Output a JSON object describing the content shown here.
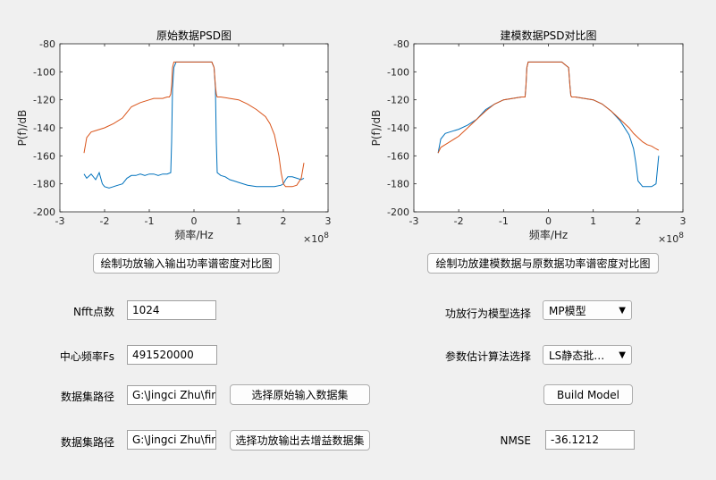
{
  "chart_data": [
    {
      "type": "line",
      "title": "原始数据PSD图",
      "xlabel": "频率/Hz",
      "ylabel": "P(f)/dB",
      "x_exponent": "×10^8",
      "xlim": [
        -3,
        3
      ],
      "ylim": [
        -200,
        -80
      ],
      "xticks": [
        -3,
        -2,
        -1,
        0,
        1,
        2,
        3
      ],
      "yticks": [
        -200,
        -180,
        -160,
        -140,
        -120,
        -100,
        -80
      ],
      "grid": false,
      "series": [
        {
          "color": "#0072bd",
          "x": [
            -2.46,
            -2.4,
            -2.3,
            -2.2,
            -2.12,
            -2.05,
            -2.0,
            -1.9,
            -1.8,
            -1.7,
            -1.6,
            -1.5,
            -1.4,
            -1.3,
            -1.2,
            -1.1,
            -1.0,
            -0.9,
            -0.8,
            -0.7,
            -0.6,
            -0.52,
            -0.5,
            -0.48,
            -0.45,
            -0.4,
            -0.3,
            -0.2,
            -0.1,
            0,
            0.1,
            0.2,
            0.3,
            0.4,
            0.45,
            0.48,
            0.5,
            0.52,
            0.6,
            0.7,
            0.8,
            0.9,
            1.0,
            1.2,
            1.4,
            1.6,
            1.8,
            1.95,
            2.0,
            2.05,
            2.1,
            2.2,
            2.3,
            2.4,
            2.46
          ],
          "y": [
            -173,
            -176,
            -173,
            -177,
            -172,
            -180,
            -182,
            -183,
            -182,
            -181,
            -180,
            -176,
            -174,
            -174,
            -173,
            -174,
            -173,
            -173,
            -174,
            -173,
            -173,
            -172,
            -150,
            -112,
            -97,
            -93,
            -93,
            -93,
            -93,
            -93,
            -93,
            -93,
            -93,
            -93,
            -97,
            -112,
            -150,
            -172,
            -174,
            -175,
            -177,
            -178,
            -179,
            -181,
            -182,
            -182,
            -182,
            -181,
            -180,
            -177,
            -175,
            -175,
            -176,
            -177,
            -176
          ]
        },
        {
          "color": "#d95319",
          "x": [
            -2.46,
            -2.4,
            -2.3,
            -2.2,
            -2.0,
            -1.8,
            -1.6,
            -1.4,
            -1.2,
            -1.0,
            -0.9,
            -0.8,
            -0.7,
            -0.6,
            -0.55,
            -0.52,
            -0.5,
            -0.48,
            -0.45,
            -0.4,
            -0.3,
            -0.2,
            -0.1,
            0,
            0.1,
            0.2,
            0.3,
            0.4,
            0.45,
            0.48,
            0.5,
            0.52,
            0.6,
            0.8,
            1.0,
            1.2,
            1.4,
            1.6,
            1.7,
            1.8,
            1.9,
            1.95,
            2.0,
            2.05,
            2.1,
            2.2,
            2.3,
            2.4,
            2.46
          ],
          "y": [
            -158,
            -147,
            -143,
            -142,
            -140,
            -137,
            -133,
            -125,
            -122,
            -120,
            -119,
            -119,
            -119,
            -118,
            -118,
            -116,
            -110,
            -97,
            -93,
            -93,
            -93,
            -93,
            -93,
            -93,
            -93,
            -93,
            -93,
            -93,
            -97,
            -110,
            -116,
            -118,
            -118,
            -119,
            -120,
            -123,
            -127,
            -132,
            -137,
            -145,
            -160,
            -172,
            -180,
            -182,
            -182,
            -182,
            -181,
            -176,
            -165
          ]
        }
      ]
    },
    {
      "type": "line",
      "title": "建模数据PSD对比图",
      "xlabel": "频率/Hz",
      "ylabel": "P(f)/dB",
      "x_exponent": "×10^8",
      "xlim": [
        -3,
        3
      ],
      "ylim": [
        -200,
        -80
      ],
      "xticks": [
        -3,
        -2,
        -1,
        0,
        1,
        2,
        3
      ],
      "yticks": [
        -200,
        -180,
        -160,
        -140,
        -120,
        -100,
        -80
      ],
      "grid": false,
      "series": [
        {
          "color": "#0072bd",
          "x": [
            -2.46,
            -2.4,
            -2.3,
            -2.2,
            -2.0,
            -1.8,
            -1.6,
            -1.4,
            -1.2,
            -1.0,
            -0.8,
            -0.6,
            -0.52,
            -0.5,
            -0.48,
            -0.45,
            -0.3,
            0,
            0.3,
            0.45,
            0.48,
            0.5,
            0.52,
            0.6,
            0.8,
            1.0,
            1.2,
            1.4,
            1.6,
            1.8,
            1.9,
            1.95,
            2.0,
            2.1,
            2.2,
            2.3,
            2.4,
            2.46
          ],
          "y": [
            -158,
            -148,
            -144,
            -143,
            -141,
            -138,
            -134,
            -127,
            -123,
            -120,
            -119,
            -118,
            -118,
            -110,
            -97,
            -93,
            -93,
            -93,
            -93,
            -97,
            -110,
            -117,
            -118,
            -118,
            -119,
            -120,
            -123,
            -128,
            -135,
            -145,
            -155,
            -165,
            -178,
            -182,
            -182,
            -182,
            -180,
            -160
          ]
        },
        {
          "color": "#d95319",
          "x": [
            -2.46,
            -2.4,
            -2.3,
            -2.2,
            -2.0,
            -1.8,
            -1.6,
            -1.4,
            -1.2,
            -1.0,
            -0.8,
            -0.6,
            -0.52,
            -0.5,
            -0.48,
            -0.45,
            -0.3,
            0,
            0.3,
            0.45,
            0.48,
            0.5,
            0.52,
            0.6,
            0.8,
            1.0,
            1.2,
            1.4,
            1.6,
            1.8,
            1.9,
            2.0,
            2.1,
            2.2,
            2.3,
            2.4,
            2.46
          ],
          "y": [
            -158,
            -154,
            -152,
            -150,
            -146,
            -140,
            -134,
            -128,
            -123,
            -120,
            -119,
            -118,
            -118,
            -110,
            -97,
            -93,
            -93,
            -93,
            -93,
            -97,
            -110,
            -117,
            -118,
            -118,
            -119,
            -120,
            -123,
            -128,
            -134,
            -140,
            -144,
            -147,
            -150,
            -152,
            -153,
            -155,
            -156
          ]
        }
      ]
    }
  ],
  "buttons": {
    "plot_input_output": "绘制功放输入输出功率谱密度对比图",
    "plot_model_compare": "绘制功放建模数据与原数据功率谱密度对比图",
    "select_input": "选择原始输入数据集",
    "select_output": "选择功放输出去增益数据集",
    "build_model": "Build Model"
  },
  "left_form": {
    "nfft_label": "Nfft点数",
    "nfft_value": "1024",
    "fs_label": "中心频率Fs",
    "fs_value": "491520000",
    "path1_label": "数据集路径",
    "path1_value": "G:\\Jingci Zhu\\fina",
    "path2_label": "数据集路径",
    "path2_value": "G:\\Jingci Zhu\\fina"
  },
  "right_form": {
    "model_label": "功放行为模型选择",
    "model_value": "MP模型",
    "algo_label": "参数估计算法选择",
    "algo_value": "LS静态批…",
    "nmse_label": "NMSE",
    "nmse_value": "-36.1212"
  }
}
